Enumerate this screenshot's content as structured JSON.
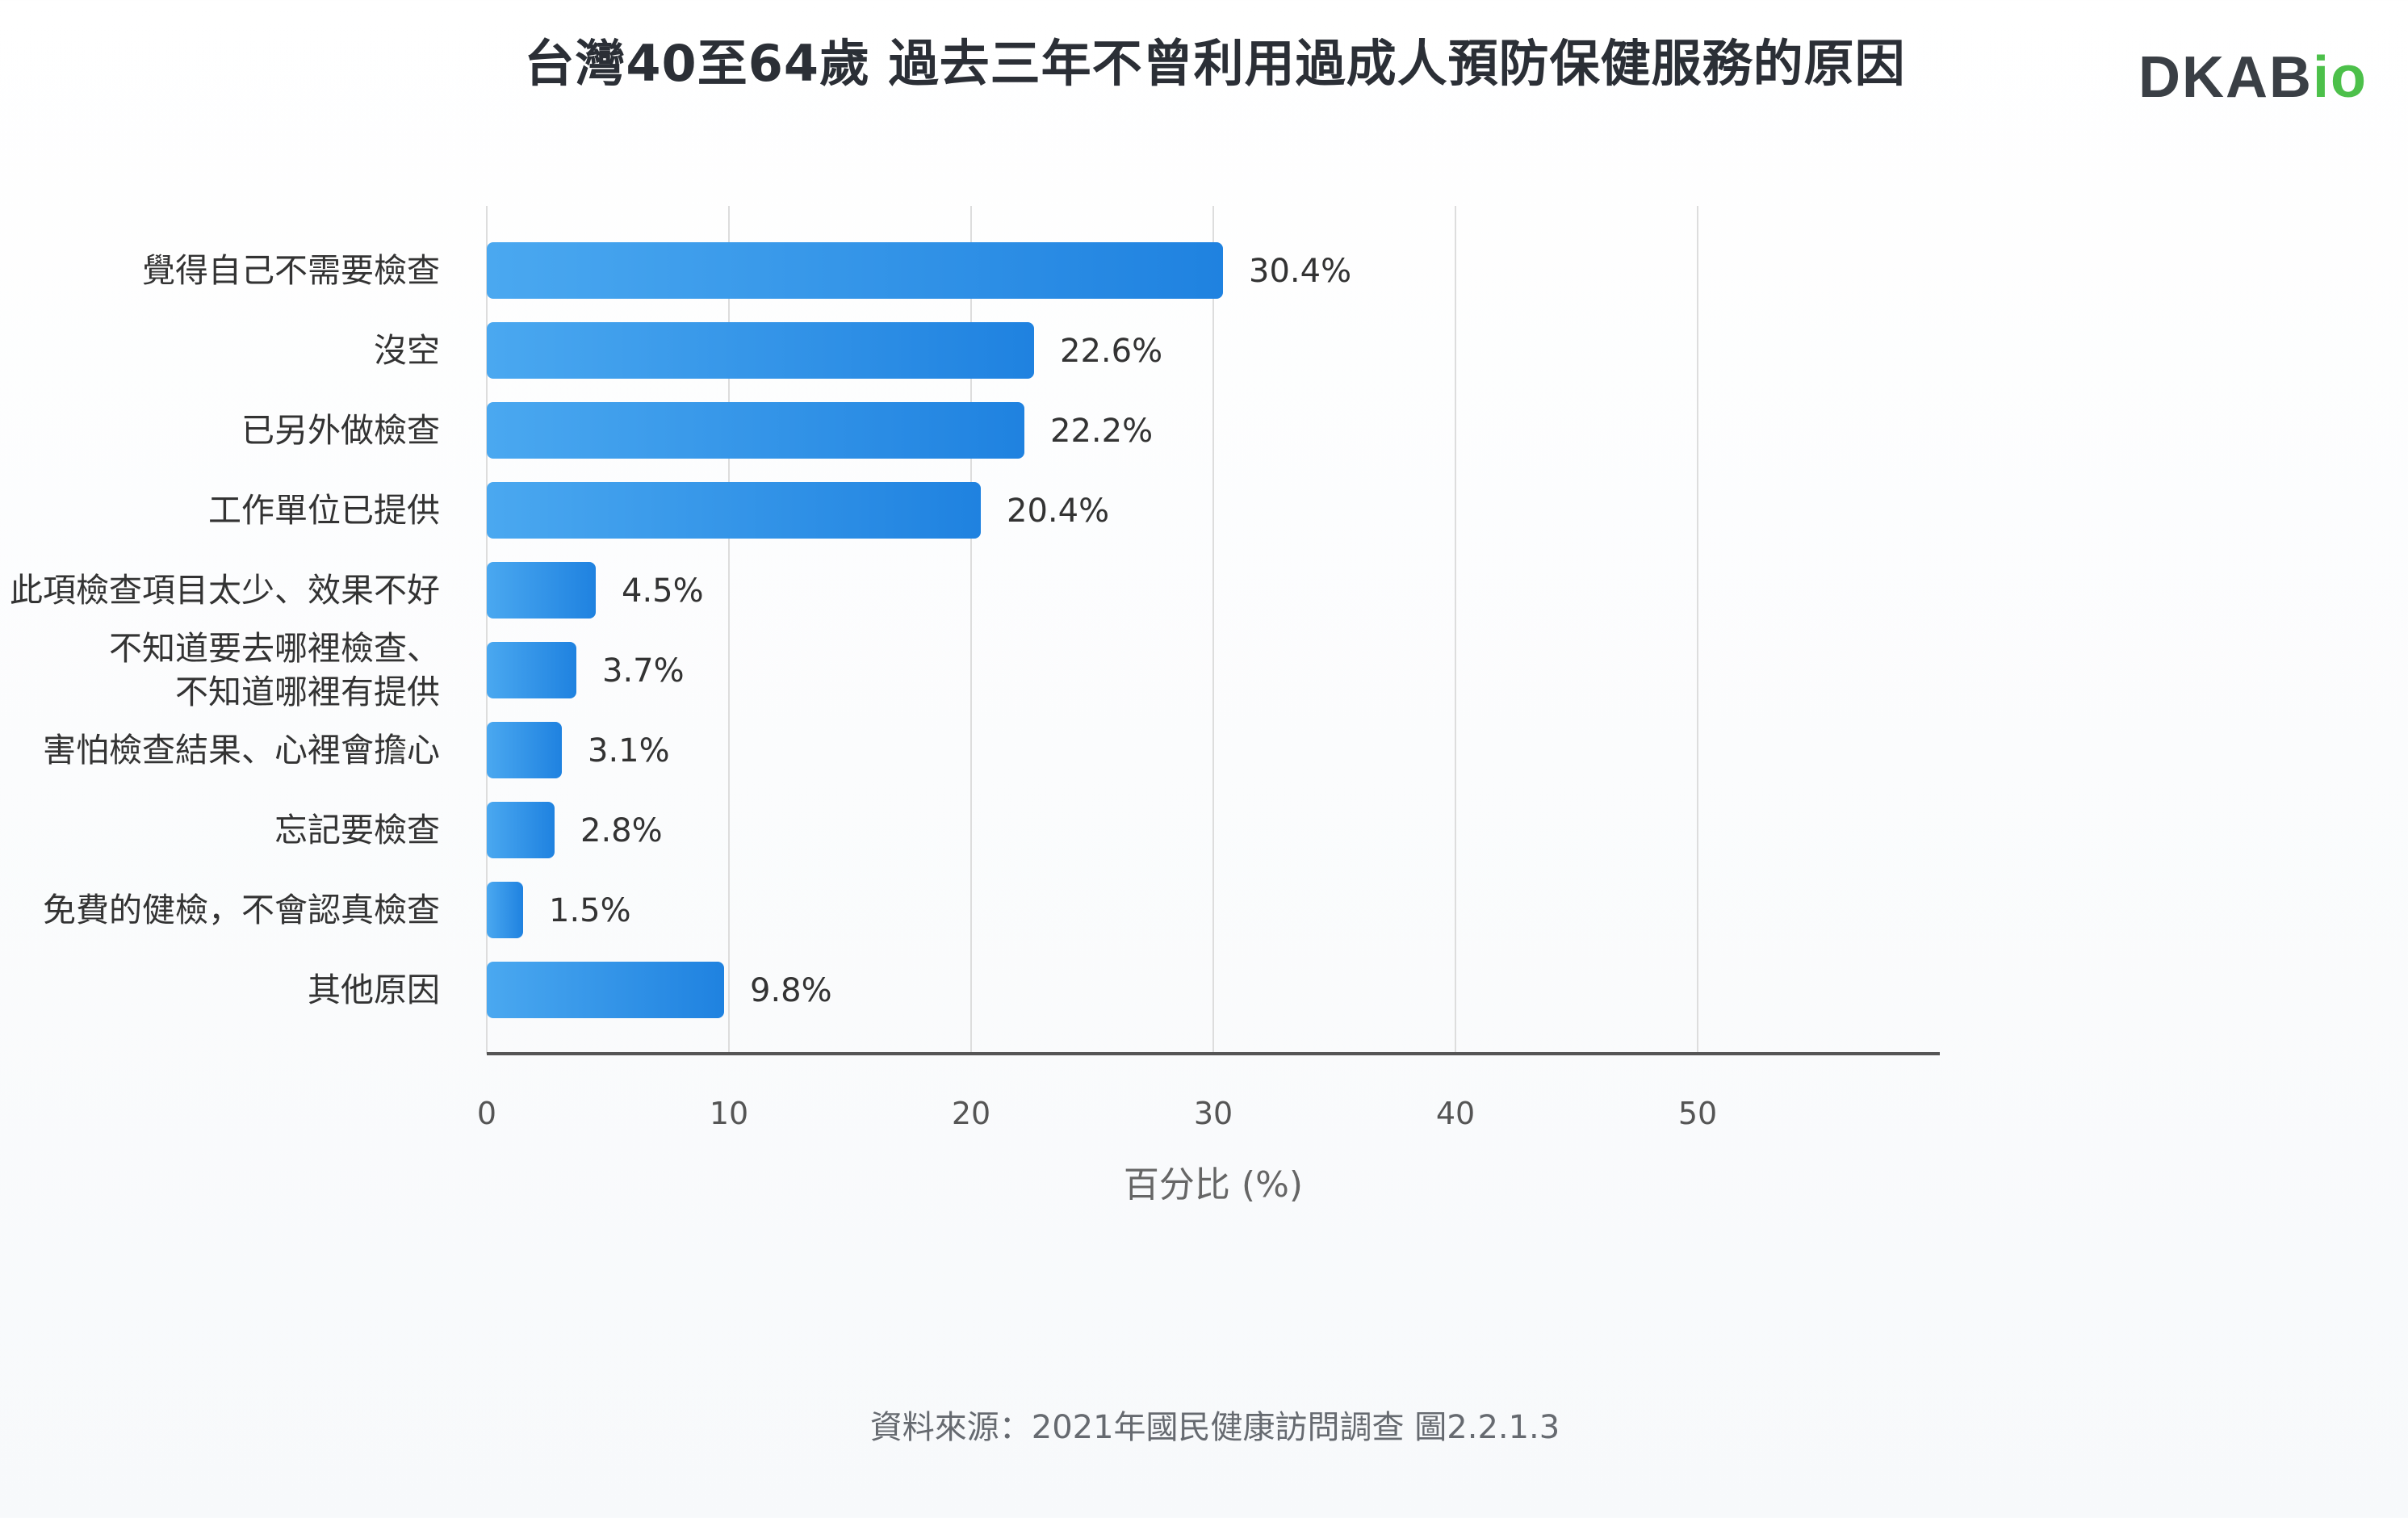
{
  "title": "台灣40至64歲 過去三年不曾利用過成人預防保健服務的原因",
  "logo": {
    "main": "DKAB",
    "accent": "io"
  },
  "source": "資料來源：2021年國民健康訪問調查 圖2.2.1.3",
  "colors": {
    "bar_start": "#4aa8f0",
    "bar_end": "#1f82e0",
    "grid": "#dddddd",
    "axis": "#555555",
    "text": "#333333"
  },
  "chart_data": {
    "type": "bar",
    "orientation": "horizontal",
    "categories": [
      [
        "覺得自己不需要檢查"
      ],
      [
        "沒空"
      ],
      [
        "已另外做檢查"
      ],
      [
        "工作單位已提供"
      ],
      [
        "此項檢查項目太少、效果不好"
      ],
      [
        "不知道要去哪裡檢查、",
        "不知道哪裡有提供"
      ],
      [
        "害怕檢查結果、心裡會擔心"
      ],
      [
        "忘記要檢查"
      ],
      [
        "免費的健檢，不會認真檢查"
      ],
      [
        "其他原因"
      ]
    ],
    "values": [
      30.4,
      22.6,
      22.2,
      20.4,
      4.5,
      3.7,
      3.1,
      2.8,
      1.5,
      9.8
    ],
    "value_labels": [
      "30.4%",
      "22.6%",
      "22.2%",
      "20.4%",
      "4.5%",
      "3.7%",
      "3.1%",
      "2.8%",
      "1.5%",
      "9.8%"
    ],
    "xlim": [
      0,
      60
    ],
    "xticks": [
      0,
      10,
      20,
      30,
      40,
      50
    ],
    "xlabel": "百分比 (%)",
    "grid": true
  }
}
